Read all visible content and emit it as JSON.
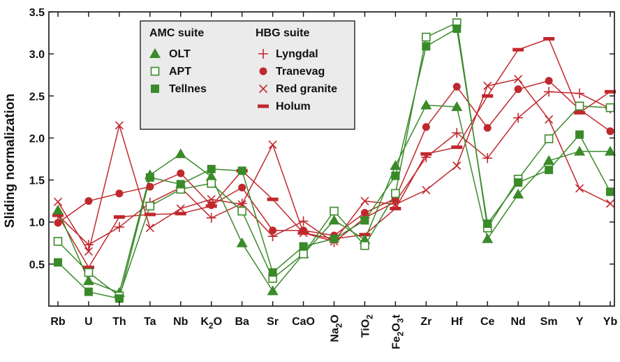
{
  "chart_data": {
    "type": "line",
    "ylabel": "Sliding normalization",
    "xlabel": "",
    "ylim": [
      0,
      3.5
    ],
    "yticks": [
      "0.5",
      "1.0",
      "1.5",
      "2.0",
      "2.5",
      "3.0",
      "3.5"
    ],
    "grid": false,
    "legend_position": "top-left",
    "categories": [
      "Rb",
      "U",
      "Th",
      "Ta",
      "Nb",
      "K2O",
      "Ba",
      "Sr",
      "CaO",
      "Na2O",
      "TiO2",
      "Fe2O3t",
      "Zr",
      "Hf",
      "Ce",
      "Nd",
      "Sm",
      "Y",
      "Yb"
    ],
    "category_labels": [
      {
        "text": "Rb"
      },
      {
        "text": "U"
      },
      {
        "text": "Th"
      },
      {
        "text": "Ta"
      },
      {
        "text": "Nb"
      },
      {
        "text": "K",
        "sub": "2",
        "post": "O"
      },
      {
        "text": "Ba"
      },
      {
        "text": "Sr"
      },
      {
        "text": "CaO"
      },
      {
        "text": "Na",
        "sub": "2",
        "post": "O",
        "rotated": true
      },
      {
        "text": "TiO",
        "sub": "2",
        "post": "",
        "rotated": true
      },
      {
        "text": "Fe",
        "sub": "2",
        "post": "O",
        "sub2": "3",
        "post2": "t",
        "rotated": true
      },
      {
        "text": "Zr"
      },
      {
        "text": "Hf"
      },
      {
        "text": "Ce"
      },
      {
        "text": "Nd"
      },
      {
        "text": "Sm"
      },
      {
        "text": "Y"
      },
      {
        "text": "Yb"
      }
    ],
    "legend": {
      "groups": [
        {
          "title": "AMC suite",
          "entries": [
            {
              "label": "OLT",
              "series": "OLT"
            },
            {
              "label": "APT",
              "series": "APT"
            },
            {
              "label": "Tellnes",
              "series": "Tellnes"
            }
          ]
        },
        {
          "title": "HBG suite",
          "entries": [
            {
              "label": "Lyngdal",
              "series": "Lyngdal"
            },
            {
              "label": "Tranevag",
              "series": "Tranevag"
            },
            {
              "label": "Red granite",
              "series": "Red granite"
            },
            {
              "label": "Holum",
              "series": "Holum"
            }
          ]
        }
      ]
    },
    "series": [
      {
        "name": "OLT",
        "color": "#3a8a2a",
        "marker": "triangle",
        "values": [
          1.14,
          0.3,
          0.16,
          1.56,
          1.81,
          1.54,
          0.75,
          0.18,
          0.62,
          1.02,
          0.79,
          1.67,
          2.39,
          2.37,
          0.8,
          1.33,
          1.73,
          1.84,
          1.84
        ]
      },
      {
        "name": "APT",
        "color": "#3a8a2a",
        "marker": "square-open",
        "values": [
          0.77,
          0.4,
          0.12,
          1.19,
          1.39,
          1.46,
          1.13,
          0.33,
          0.62,
          1.13,
          0.72,
          1.34,
          3.2,
          3.37,
          0.93,
          1.51,
          1.99,
          2.38,
          2.36
        ]
      },
      {
        "name": "Tellnes",
        "color": "#3a8a2a",
        "marker": "square",
        "values": [
          0.52,
          0.17,
          0.09,
          1.53,
          1.45,
          1.63,
          1.61,
          0.4,
          0.71,
          0.8,
          1.02,
          1.55,
          3.09,
          3.3,
          0.98,
          1.47,
          1.62,
          2.04,
          1.36
        ]
      },
      {
        "name": "Lyngdal",
        "color": "#c0282d",
        "marker": "plus",
        "values": [
          1.08,
          0.73,
          0.94,
          1.23,
          1.41,
          1.05,
          1.22,
          0.83,
          1.01,
          0.76,
          1.05,
          1.24,
          1.77,
          2.06,
          1.76,
          2.24,
          2.55,
          2.53,
          2.35
        ]
      },
      {
        "name": "Tranevag",
        "color": "#c0282d",
        "marker": "circle",
        "values": [
          0.99,
          1.25,
          1.34,
          1.42,
          1.58,
          1.2,
          1.41,
          0.9,
          0.9,
          0.84,
          1.11,
          1.28,
          2.13,
          2.61,
          2.12,
          2.58,
          2.68,
          2.34,
          2.08
        ]
      },
      {
        "name": "Red granite",
        "color": "#c0282d",
        "marker": "x",
        "values": [
          1.24,
          0.65,
          2.15,
          0.93,
          1.16,
          1.27,
          1.21,
          1.92,
          0.87,
          0.77,
          1.25,
          1.21,
          1.38,
          1.67,
          2.62,
          2.7,
          2.22,
          1.4,
          1.22
        ]
      },
      {
        "name": "Holum",
        "color": "#c0282d",
        "marker": "bar",
        "values": [
          1.08,
          0.46,
          1.06,
          1.09,
          1.1,
          1.19,
          1.61,
          1.27,
          0.87,
          0.8,
          0.85,
          1.16,
          1.81,
          1.89,
          2.5,
          3.05,
          3.18,
          2.3,
          2.55
        ]
      }
    ]
  }
}
